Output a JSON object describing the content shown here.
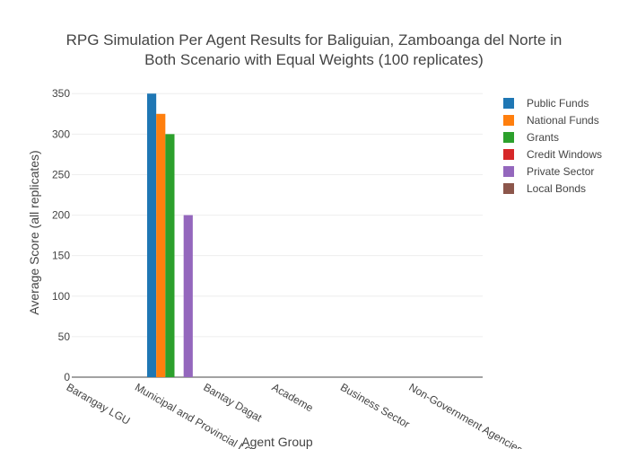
{
  "chart_data": {
    "type": "bar",
    "title_lines": [
      "RPG Simulation Per Agent Results for Baliguian, Zamboanga del Norte in",
      "Both Scenario with Equal Weights (100 replicates)"
    ],
    "xlabel": "Agent Group",
    "ylabel": "Average Score (all replicates)",
    "categories": [
      "Barangay LGU",
      "Municipal and Provincial LGU",
      "Bantay Dagat",
      "Academe",
      "Business Sector",
      "Non-Government Agencies"
    ],
    "series": [
      {
        "name": "Public Funds",
        "color": "#1f77b4",
        "values": [
          0,
          350,
          0,
          0,
          0,
          0
        ]
      },
      {
        "name": "National Funds",
        "color": "#ff7f0e",
        "values": [
          0,
          325,
          0,
          0,
          0,
          0
        ]
      },
      {
        "name": "Grants",
        "color": "#2ca02c",
        "values": [
          0,
          300,
          0,
          0,
          0,
          0
        ]
      },
      {
        "name": "Credit Windows",
        "color": "#d62728",
        "values": [
          0,
          0,
          0,
          0,
          0,
          0
        ]
      },
      {
        "name": "Private Sector",
        "color": "#9467bd",
        "values": [
          0,
          200,
          0,
          0,
          0,
          0
        ]
      },
      {
        "name": "Local Bonds",
        "color": "#8c564b",
        "values": [
          0,
          0,
          0,
          0,
          0,
          0
        ]
      }
    ],
    "yticks": [
      0,
      50,
      100,
      150,
      200,
      250,
      300,
      350
    ],
    "ylim": [
      0,
      368
    ],
    "grid": true,
    "legend_position": "top-right"
  }
}
